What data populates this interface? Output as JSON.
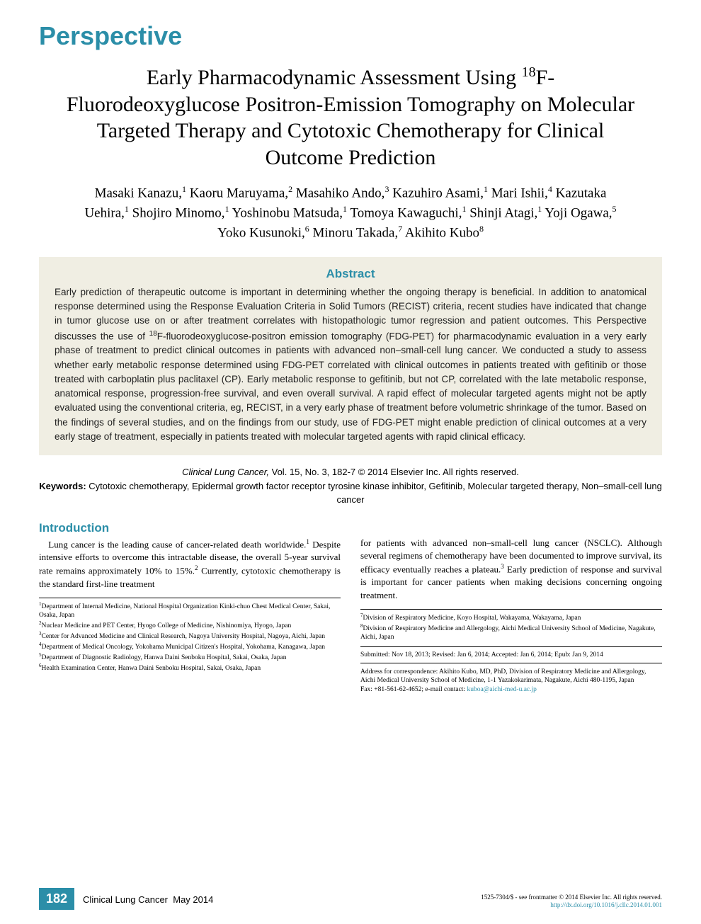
{
  "section_label": "Perspective",
  "title_html": "Early Pharmacodynamic Assessment Using <sup>18</sup>F-Fluorodeoxyglucose Positron-Emission Tomography on Molecular Targeted Therapy and Cytotoxic Chemotherapy for Clinical Outcome Prediction",
  "authors_html": "Masaki Kanazu,<sup>1</sup> Kaoru Maruyama,<sup>2</sup> Masahiko Ando,<sup>3</sup> Kazuhiro Asami,<sup>1</sup> Mari Ishii,<sup>4</sup> Kazutaka Uehira,<sup>1</sup> Shojiro Minomo,<sup>1</sup> Yoshinobu Matsuda,<sup>1</sup> Tomoya Kawaguchi,<sup>1</sup> Shinji Atagi,<sup>1</sup> Yoji Ogawa,<sup>5</sup> Yoko Kusunoki,<sup>6</sup> Minoru Takada,<sup>7</sup> Akihito Kubo<sup>8</sup>",
  "abstract": {
    "heading": "Abstract",
    "text_html": "Early prediction of therapeutic outcome is important in determining whether the ongoing therapy is beneficial. In addition to anatomical response determined using the Response Evaluation Criteria in Solid Tumors (RECIST) criteria, recent studies have indicated that change in tumor glucose use on or after treatment correlates with histopathologic tumor regression and patient outcomes. This Perspective discusses the use of <sup>18</sup>F-fluorodeoxyglucose-positron emission tomography (FDG-PET) for pharmacodynamic evaluation in a very early phase of treatment to predict clinical outcomes in patients with advanced non–small-cell lung cancer. We conducted a study to assess whether early metabolic response determined using FDG-PET correlated with clinical outcomes in patients treated with gefitinib or those treated with carboplatin plus paclitaxel (CP). Early metabolic response to gefitinib, but not CP, correlated with the late metabolic response, anatomical response, progression-free survival, and even overall survival. A rapid effect of molecular targeted agents might not be aptly evaluated using the conventional criteria, eg, RECIST, in a very early phase of treatment before volumetric shrinkage of the tumor. Based on the findings of several studies, and on the findings from our study, use of FDG-PET might enable prediction of clinical outcomes at a very early stage of treatment, especially in patients treated with molecular targeted agents with rapid clinical efficacy."
  },
  "citation": {
    "journal": "Clinical Lung Cancer,",
    "vol": " Vol. 15, No. 3, 182-7 © 2014 Elsevier Inc. All rights reserved.",
    "kw_label": "Keywords:",
    "keywords": " Cytotoxic chemotherapy, Epidermal growth factor receptor tyrosine kinase inhibitor, Gefitinib, Molecular targeted therapy, Non–small-cell lung cancer"
  },
  "intro": {
    "heading": "Introduction",
    "col1_html": "&nbsp;&nbsp;&nbsp;Lung cancer is the leading cause of cancer-related death worldwide.<sup>1</sup> Despite intensive efforts to overcome this intractable disease, the overall 5-year survival rate remains approximately 10% to 15%.<sup>2</sup> Currently, cytotoxic chemotherapy is the standard first-line treatment",
    "col2_html": "for patients with advanced non–small-cell lung cancer (NSCLC). Although several regimens of chemotherapy have been documented to improve survival, its efficacy eventually reaches a plateau.<sup>3</sup> Early prediction of response and survival is important for cancer patients when making decisions concerning ongoing treatment."
  },
  "affiliations_left_html": "<sup>1</sup>Department of Internal Medicine, National Hospital Organization Kinki-chuo Chest Medical Center, Sakai, Osaka, Japan<br><sup>2</sup>Nuclear Medicine and PET Center, Hyogo College of Medicine, Nishinomiya, Hyogo, Japan<br><sup>3</sup>Center for Advanced Medicine and Clinical Research, Nagoya University Hospital, Nagoya, Aichi, Japan<br><sup>4</sup>Department of Medical Oncology, Yokohama Municipal Citizen's Hospital, Yokohama, Kanagawa, Japan<br><sup>5</sup>Department of Diagnostic Radiology, Hanwa Daini Senboku Hospital, Sakai, Osaka, Japan<br><sup>6</sup>Health Examination Center, Hanwa Daini Senboku Hospital, Sakai, Osaka, Japan",
  "affiliations_right_html": "<sup>7</sup>Division of Respiratory Medicine, Koyo Hospital, Wakayama, Wakayama, Japan<br><sup>8</sup>Division of Respiratory Medicine and Allergology, Aichi Medical University School of Medicine, Nagakute, Aichi, Japan",
  "submission": "Submitted: Nov 18, 2013; Revised: Jan 6, 2014; Accepted: Jan 6, 2014; Epub: Jan 9, 2014",
  "correspondence_html": "Address for correspondence: Akihito Kubo, MD, PhD, Division of Respiratory Medicine and Allergology, Aichi Medical University School of Medicine, 1-1 Yazakokarimata, Nagakute, Aichi 480-1195, Japan<br>Fax: +81-561-62-4652; e-mail contact: <a href='#'>kuboa@aichi-med-u.ac.jp</a>",
  "footer": {
    "page": "182",
    "journal": "Clinical Lung Cancer",
    "issue": "May 2014",
    "copyright": "1525-7304/$ - see frontmatter © 2014 Elsevier Inc. All rights reserved.",
    "doi": "http://dx.doi.org/10.1016/j.cllc.2014.01.001"
  },
  "colors": {
    "accent": "#2b8ea8",
    "abstract_bg": "#f0eee3",
    "text": "#000000",
    "page_bg": "#ffffff"
  }
}
